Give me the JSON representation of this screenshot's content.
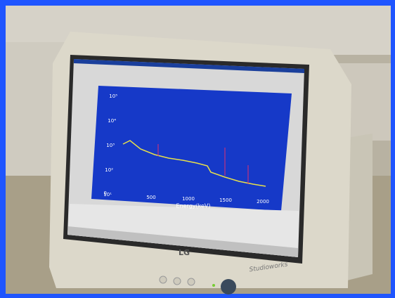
{
  "screen": {
    "y_ticks": [
      "10⁵",
      "10⁴",
      "10³",
      "10²",
      "10¹"
    ],
    "y_zero": "0",
    "x_ticks": [
      "500",
      "1000",
      "1500",
      "2000"
    ],
    "x_axis_label": "Energy(keV)"
  },
  "bezel": {
    "brand": "LG",
    "model": "Studioworks"
  }
}
